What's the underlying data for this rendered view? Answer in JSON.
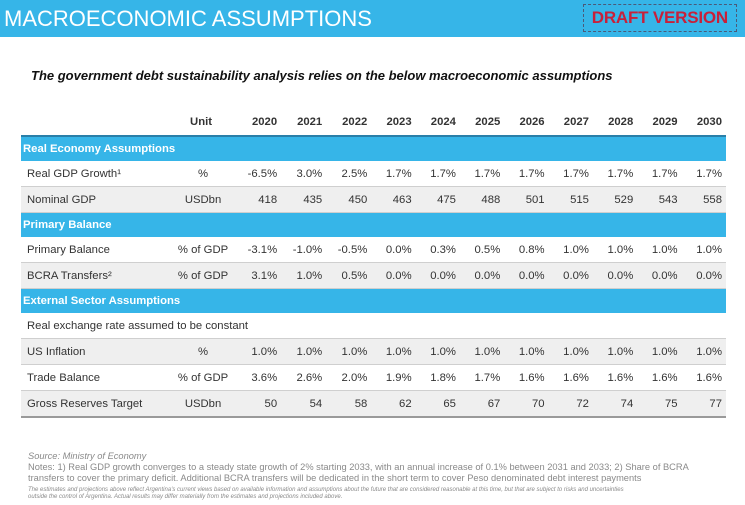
{
  "header": {
    "title": "MACROECONOMIC ASSUMPTIONS",
    "badge": "DRAFT VERSION",
    "colors": {
      "band": "#36b5e8",
      "badge_text": "#c8203a"
    }
  },
  "subtitle": "The government debt sustainability analysis relies on the below macroeconomic assumptions",
  "table": {
    "unit_header": "Unit",
    "years": [
      "2020",
      "2021",
      "2022",
      "2023",
      "2024",
      "2025",
      "2026",
      "2027",
      "2028",
      "2029",
      "2030"
    ],
    "sections": [
      {
        "title": "Real Economy Assumptions",
        "rows": [
          {
            "label": "Real GDP Growth¹",
            "unit": "%",
            "values": [
              "-6.5%",
              "3.0%",
              "2.5%",
              "1.7%",
              "1.7%",
              "1.7%",
              "1.7%",
              "1.7%",
              "1.7%",
              "1.7%",
              "1.7%"
            ]
          },
          {
            "label": "Nominal GDP",
            "unit": "USDbn",
            "values": [
              "418",
              "435",
              "450",
              "463",
              "475",
              "488",
              "501",
              "515",
              "529",
              "543",
              "558"
            ]
          }
        ]
      },
      {
        "title": "Primary Balance",
        "rows": [
          {
            "label": "Primary Balance",
            "unit": "% of GDP",
            "values": [
              "-3.1%",
              "-1.0%",
              "-0.5%",
              "0.0%",
              "0.3%",
              "0.5%",
              "0.8%",
              "1.0%",
              "1.0%",
              "1.0%",
              "1.0%"
            ]
          },
          {
            "label": "BCRA Transfers²",
            "unit": "% of GDP",
            "values": [
              "3.1%",
              "1.0%",
              "0.5%",
              "0.0%",
              "0.0%",
              "0.0%",
              "0.0%",
              "0.0%",
              "0.0%",
              "0.0%",
              "0.0%"
            ]
          }
        ]
      },
      {
        "title": "External Sector Assumptions",
        "note": "Real exchange rate assumed to be constant",
        "rows": [
          {
            "label": "US Inflation",
            "unit": "%",
            "values": [
              "1.0%",
              "1.0%",
              "1.0%",
              "1.0%",
              "1.0%",
              "1.0%",
              "1.0%",
              "1.0%",
              "1.0%",
              "1.0%",
              "1.0%"
            ]
          },
          {
            "label": "Trade Balance",
            "unit": "% of GDP",
            "values": [
              "3.6%",
              "2.6%",
              "2.0%",
              "1.9%",
              "1.8%",
              "1.7%",
              "1.6%",
              "1.6%",
              "1.6%",
              "1.6%",
              "1.6%"
            ]
          },
          {
            "label": "Gross Reserves Target",
            "unit": "USDbn",
            "values": [
              "50",
              "54",
              "58",
              "62",
              "65",
              "67",
              "70",
              "72",
              "74",
              "75",
              "77"
            ]
          }
        ]
      }
    ]
  },
  "footer": {
    "source": "Source: Ministry of Economy",
    "notes_line1": "Notes: 1) Real GDP growth converges to a steady state growth of 2% starting 2033, with an annual increase of 0.1% between 2031 and 2033; 2) Share of BCRA",
    "notes_line2": "transfers to cover the primary deficit. Additional BCRA transfers will be dedicated in the short term to cover Peso denominated debt interest payments",
    "disclaimer_line1": "The estimates and projections above reflect Argentina's current views based on available information and assumptions about the future that are considered reasonable at this time, but that are subject to risks and uncertainties",
    "disclaimer_line2": "outside the control of Argentina.  Actual results may differ materially from the estimates and projections included above."
  }
}
